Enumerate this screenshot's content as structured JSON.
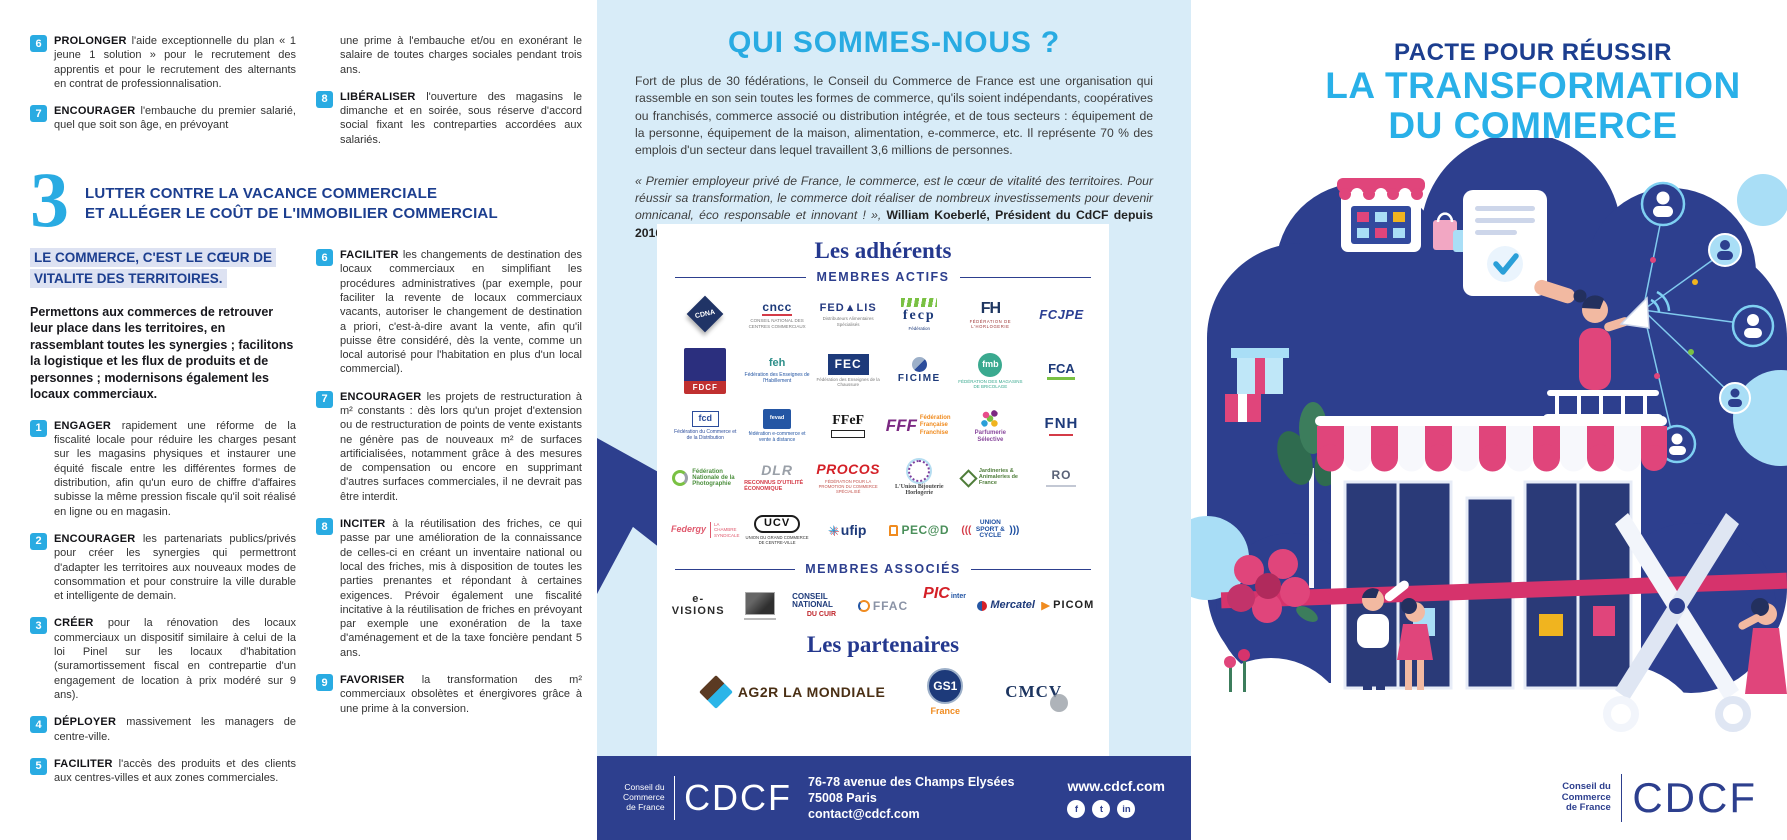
{
  "left": {
    "top_col1": [
      {
        "n": "6",
        "kw": "PROLONGER",
        "t": "l'aide exceptionnelle du plan « 1 jeune 1 solution » pour le recrutement des apprentis et pour le recrutement des alternants en contrat de professionnalisation."
      },
      {
        "n": "7",
        "kw": "ENCOURAGER",
        "t": "l'embauche du premier salarié, quel que soit son âge, en prévoyant"
      }
    ],
    "top_col2": [
      {
        "n": "",
        "kw": "",
        "t": "une prime à l'embauche et/ou en exonérant le salaire de toutes charges sociales pendant trois ans."
      },
      {
        "n": "8",
        "kw": "LIBÉRALISER",
        "t": "l'ouverture des magasins le dimanche et en soirée, sous réserve d'accord social fixant les contreparties accordées aux salariés."
      }
    ],
    "section": {
      "number": "3",
      "title1": "LUTTER CONTRE LA VACANCE COMMERCIALE",
      "title2": "ET ALLÉGER LE COÛT DE L'IMMOBILIER COMMERCIAL"
    },
    "highlight": "LE COMMERCE, C'EST LE CŒUR DE VITALITE DES TERRITOIRES.",
    "intro": "Permettons aux commerces de retrouver leur place dans les territoires, en rassemblant toutes les synergies ; facilitons la logistique et les flux de produits et de personnes ; modernisons également les locaux commerciaux.",
    "items_col1": [
      {
        "n": "1",
        "kw": "ENGAGER",
        "t": "rapidement une réforme de la fiscalité locale pour réduire les charges pesant sur les magasins physiques et instaurer une équité fiscale entre les différentes formes de distribution, afin qu'un euro de chiffre d'affaires subisse la même pression fiscale qu'il soit réalisé en ligne ou en magasin."
      },
      {
        "n": "2",
        "kw": "ENCOURAGER",
        "t": "les partenariats publics/privés pour créer les synergies qui permettront d'adapter les territoires aux nouveaux modes de consommation et pour construire la ville durable et intelligente de demain."
      },
      {
        "n": "3",
        "kw": "CRÉER",
        "t": "pour la rénovation des locaux commerciaux un dispositif similaire à celui de la loi Pinel sur les locaux d'habitation (suramortissement fiscal en contrepartie d'un engagement de location à prix modéré sur 9 ans)."
      },
      {
        "n": "4",
        "kw": "DÉPLOYER",
        "t": "massivement les managers de centre-ville."
      },
      {
        "n": "5",
        "kw": "FACILITER",
        "t": "l'accès des produits et des clients aux centres-villes et aux zones commerciales."
      }
    ],
    "items_col2": [
      {
        "n": "6",
        "kw": "FACILITER",
        "t": "les changements de destination des locaux commerciaux en simplifiant les procédures administratives (par exemple, pour faciliter la revente de locaux commerciaux vacants, autoriser le changement de destination a priori, c'est-à-dire avant la vente, afin qu'il puisse être considéré, dès la vente, comme un local autorisé pour l'habitation en plus d'un local commercial)."
      },
      {
        "n": "7",
        "kw": "ENCOURAGER",
        "t": "les projets de restructuration à m² constants : dès lors qu'un projet d'extension ou de restructuration de points de vente existants ne génère pas de nouveaux m² de surfaces artificialisées, notamment grâce à des mesures de compensation ou encore en supprimant d'autres surfaces commerciales, il ne devrait pas être interdit."
      },
      {
        "n": "8",
        "kw": "INCITER",
        "t": "à la réutilisation des friches, ce qui passe par une amélioration de la connaissance de celles-ci en créant un inventaire national ou local des friches, mis à disposition de toutes les parties prenantes et répondant à certaines exigences. Prévoir également une fiscalité incitative à la réutilisation de friches en prévoyant par exemple une exonération de la taxe d'aménagement et de la taxe foncière pendant 5 ans."
      },
      {
        "n": "9",
        "kw": "FAVORISER",
        "t": "la transformation des m² commerciaux obsolètes et énergivores grâce à une prime à la conversion."
      }
    ]
  },
  "middle": {
    "title": "QUI SOMMES-NOUS ?",
    "para1": "Fort de plus de 30 fédérations, le Conseil du Commerce de France est une organisation qui rassemble en son sein toutes les formes de commerce, qu'ils soient indépendants, coopératives ou franchisés, commerce associé ou distribution intégrée, et de tous secteurs : équipement de la personne, équipement de la maison, alimentation, e-commerce, etc. Il représente 70 % des emplois d'un secteur dans lequel travaillent 3,6 millions de personnes.",
    "quote": "« Premier employeur privé de France, le commerce, est le cœur de vitalité des territoires. Pour réussir sa transformation, le commerce doit réaliser de nombreux investissements pour devenir omnicanal, éco responsable et innovant ! », ",
    "quote_author": "William Koeberlé, Président du CdCF depuis 2016.",
    "adherents_title": "Les adhérents",
    "actifs_label": "MEMBRES ACTIFS",
    "associes_label": "MEMBRES ASSOCIÉS",
    "partenaires_title": "Les partenaires",
    "active_logos": [
      {
        "id": "cdna",
        "main": "CDNA",
        "sub": ""
      },
      {
        "id": "cncc",
        "main": "cncc",
        "sub": "CONSEIL NATIONAL DES CENTRES COMMERCIAUX"
      },
      {
        "id": "fedalis",
        "main": "FED▲LIS",
        "sub": "Distributeurs Alimentaires Spécialisés"
      },
      {
        "id": "fecp",
        "main": "fecp",
        "sub": "Fédération"
      },
      {
        "id": "fh",
        "main": "FH",
        "sub": "FÉDÉRATION DE L'HORLOGERIE"
      },
      {
        "id": "fcjpe",
        "main": "FCJPE",
        "sub": ""
      },
      {
        "id": "fdcf",
        "main": "FDCF",
        "sub": ""
      },
      {
        "id": "feh",
        "main": "feh",
        "sub": "Fédération des Enseignes de l'Habillement"
      },
      {
        "id": "fec",
        "main": "FEC",
        "sub": "Fédération des Enseignes de la Chaussure"
      },
      {
        "id": "ficime",
        "main": "FICIME",
        "sub": ""
      },
      {
        "id": "fmb",
        "main": "fmb",
        "sub": "FÉDÉRATION DES MAGASINS DE BRICOLAGE"
      },
      {
        "id": "fca",
        "main": "FCA",
        "sub": ""
      },
      {
        "id": "fcd",
        "main": "fcd",
        "sub": "Fédération du Commerce et de la Distribution"
      },
      {
        "id": "fevad",
        "main": "fevad",
        "sub": "fédération e-commerce et vente à distance"
      },
      {
        "id": "ffef",
        "main": "FFeF",
        "sub": ""
      },
      {
        "id": "fff",
        "main": "FFF",
        "sub": "Fédération Française Franchise"
      },
      {
        "id": "parfumerie",
        "main": "Parfumerie Sélective",
        "sub": ""
      },
      {
        "id": "fnh",
        "main": "FNH",
        "sub": ""
      },
      {
        "id": "fnp",
        "main": "Fédération Nationale de la Photographie",
        "sub": ""
      },
      {
        "id": "dlr",
        "main": "DLR",
        "sub": "RECONNUS D'UTILITÉ ÉCONOMIQUE"
      },
      {
        "id": "procos",
        "main": "PROCOS",
        "sub": "FÉDÉRATION POUR LA PROMOTION DU COMMERCE SPÉCIALISÉ"
      },
      {
        "id": "ubh",
        "main": "L'Union Bijouterie Horlogerie",
        "sub": ""
      },
      {
        "id": "jardineries",
        "main": "Jardineries & Animaleries de France",
        "sub": ""
      },
      {
        "id": "rof",
        "main": "RO",
        "sub": ""
      },
      {
        "id": "federgy",
        "main": "Federgy",
        "sub": "LA CHAMBRE SYNDICALE"
      },
      {
        "id": "ucv",
        "main": "UCV",
        "sub": "UNION DU GRAND COMMERCE DE CENTRE-VILLE"
      },
      {
        "id": "ufip",
        "main": "ufip",
        "sub": ""
      },
      {
        "id": "pecad",
        "main": "PEC@D",
        "sub": ""
      },
      {
        "id": "unionsport",
        "main": "UNION SPORT & CYCLE",
        "sub": ""
      }
    ],
    "associate_logos": [
      {
        "id": "evisions",
        "main": "e-VISIONS",
        "sub": ""
      },
      {
        "id": "photo",
        "main": " ",
        "sub": ""
      },
      {
        "id": "cuir",
        "main": "CONSEIL NATIONAL",
        "sub": "DU CUIR"
      },
      {
        "id": "ffac",
        "main": "FFAC",
        "sub": ""
      },
      {
        "id": "pic",
        "main": "PIC",
        "sub": "inter"
      },
      {
        "id": "mercatel",
        "main": "Mercatel",
        "sub": ""
      },
      {
        "id": "picom",
        "main": "PICOM",
        "sub": ""
      }
    ],
    "partner_logos": [
      {
        "id": "ag2r",
        "main": "AG2R LA MONDIALE",
        "sub": ""
      },
      {
        "id": "gs1",
        "main": "GS1",
        "sub": "France"
      },
      {
        "id": "cmcv",
        "main": "CMCV",
        "sub": ""
      }
    ],
    "footer": {
      "org_line1": "Conseil du",
      "org_line2": "Commerce",
      "org_line3": "de France",
      "wordmark": "CDCF",
      "address1": "76-78 avenue des Champs Elysées",
      "address2": "75008 Paris",
      "address3": "contact@cdcf.com",
      "website": "www.cdcf.com",
      "social": [
        "facebook",
        "twitter",
        "linkedin"
      ]
    }
  },
  "right": {
    "title_line1": "PACTE POUR RÉUSSIR",
    "title_line2": "LA TRANSFORMATION",
    "title_line3": "DU COMMERCE",
    "org_line1": "Conseil du",
    "org_line2": "Commerce",
    "org_line3": "de France",
    "wordmark": "CDCF"
  }
}
